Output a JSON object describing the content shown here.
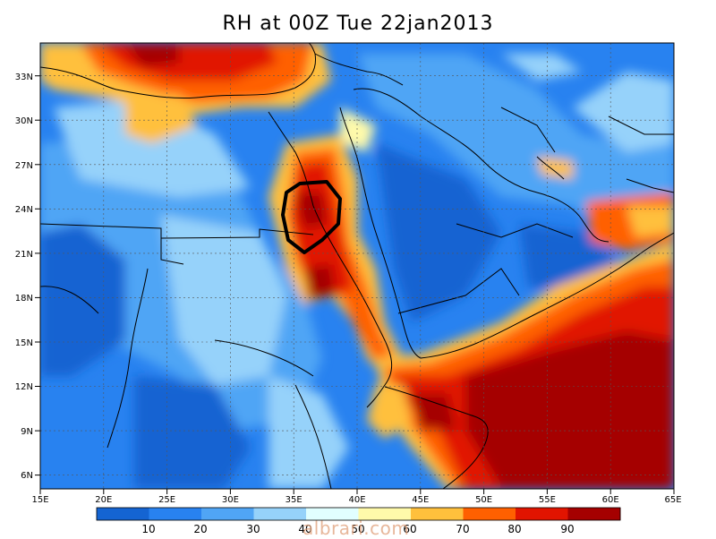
{
  "title": "RH at 00Z Tue 22jan2013",
  "colors": {
    "bins": [
      "#1464d2",
      "#2882f0",
      "#50a5f5",
      "#96d2fa",
      "#e1ffff",
      "#fffaaa",
      "#ffc03c",
      "#ff6000",
      "#e11400",
      "#a50000"
    ],
    "coast": "#000000",
    "marker": "#000000"
  },
  "lon_labels": [
    "15E",
    "20E",
    "25E",
    "30E",
    "35E",
    "40E",
    "45E",
    "50E",
    "55E",
    "60E",
    "65E"
  ],
  "lat_labels": [
    "6N",
    "9N",
    "12N",
    "15N",
    "18N",
    "21N",
    "24N",
    "27N",
    "30N",
    "33N"
  ],
  "colorbar_labels": [
    "10",
    "20",
    "30",
    "40",
    "50",
    "60",
    "70",
    "80",
    "90"
  ],
  "watermark": "albrari.com",
  "marker_shape": "octagon-circle"
}
